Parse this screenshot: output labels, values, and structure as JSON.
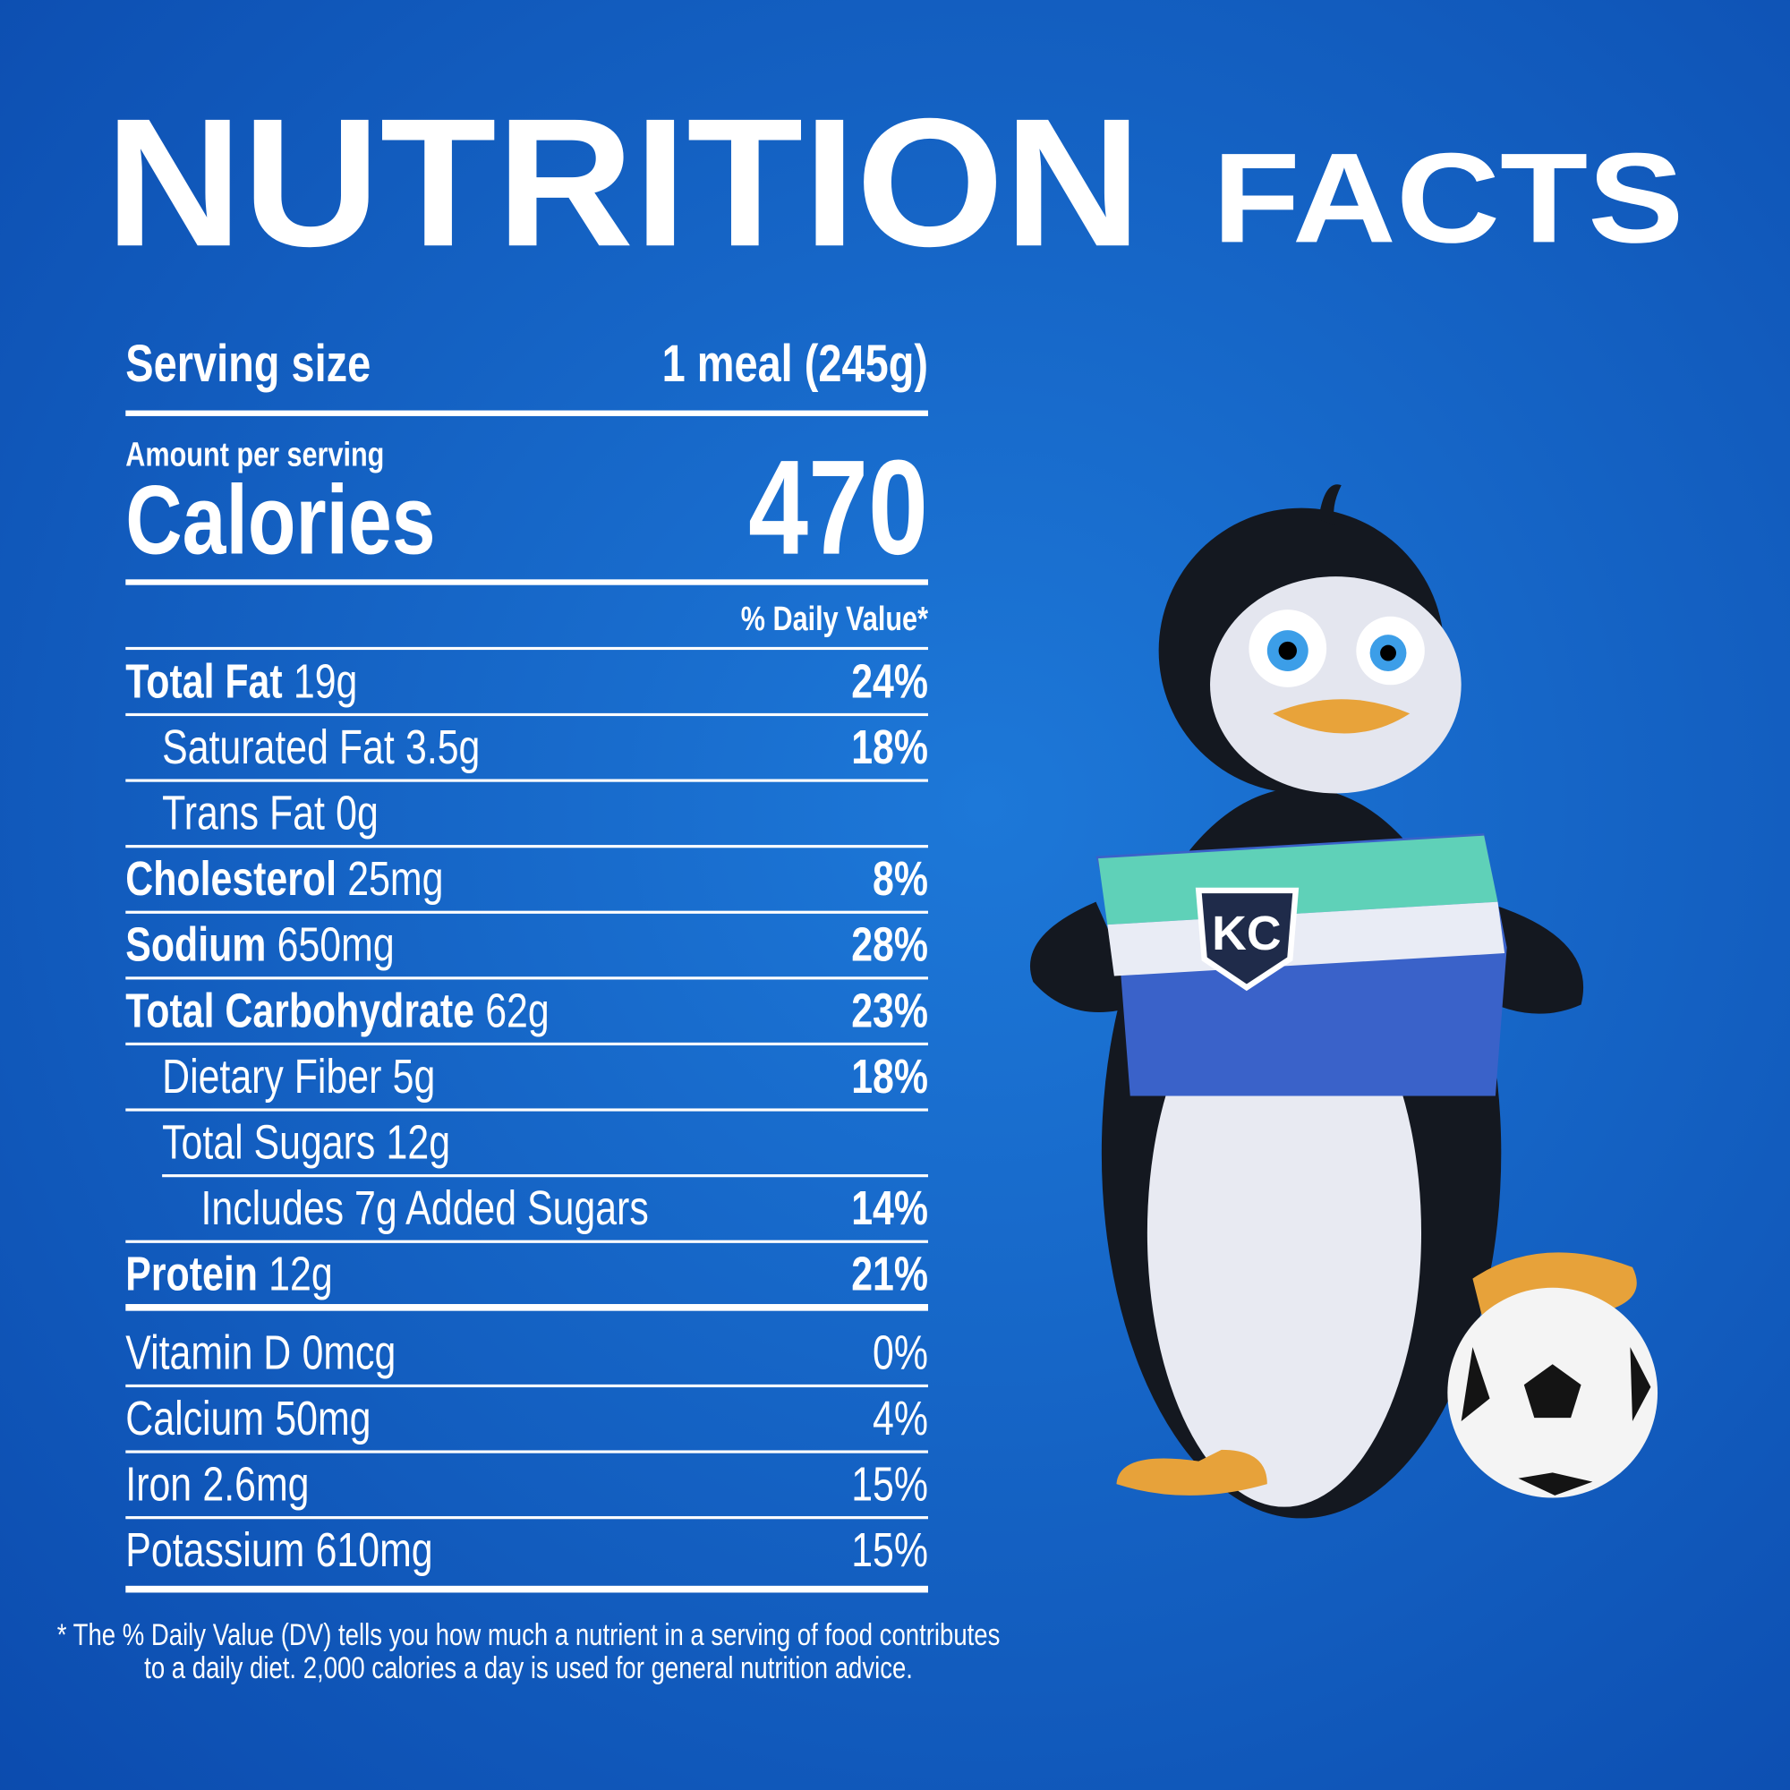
{
  "title": {
    "main": "NUTRITION",
    "second": "FACTS"
  },
  "label": {
    "serving_size": {
      "label": "Serving size",
      "value": "1 meal (245g)"
    },
    "amount_per_serving": "Amount per serving",
    "calories": {
      "label": "Calories",
      "value": "470"
    },
    "daily_value_header": "% Daily Value*",
    "nutrients": [
      {
        "name": "Total Fat",
        "amount": "19g",
        "dv": "24%"
      },
      {
        "name": "Saturated Fat",
        "amount": "3.5g",
        "dv": "18%"
      },
      {
        "name": "Trans Fat",
        "amount": "0g"
      },
      {
        "name": "Cholesterol",
        "amount": "25mg",
        "dv": "8%"
      },
      {
        "name": "Sodium",
        "amount": "650mg",
        "dv": "28%"
      },
      {
        "name": "Total Carbohydrate",
        "amount": "62g",
        "dv": "23%"
      },
      {
        "name": "Dietary Fiber",
        "amount": "5g",
        "dv": "18%"
      },
      {
        "name": "Total Sugars",
        "amount": "12g"
      },
      {
        "name": "Includes 7g Added Sugars",
        "dv": "14%"
      },
      {
        "name": "Protein",
        "amount": "12g",
        "dv": "21%"
      }
    ],
    "vitamins": [
      {
        "name": "Vitamin D",
        "amount": "0mcg",
        "dv": "0%"
      },
      {
        "name": "Calcium",
        "amount": "50mg",
        "dv": "4%"
      },
      {
        "name": "Iron",
        "amount": "2.6mg",
        "dv": "15%"
      },
      {
        "name": "Potassium",
        "amount": "610mg",
        "dv": "15%"
      }
    ],
    "footnote": [
      "* The % Daily Value (DV) tells you how much a nutrient in a serving of food contributes",
      "to a daily diet. 2,000 calories a day is used for general nutrition advice."
    ]
  }
}
